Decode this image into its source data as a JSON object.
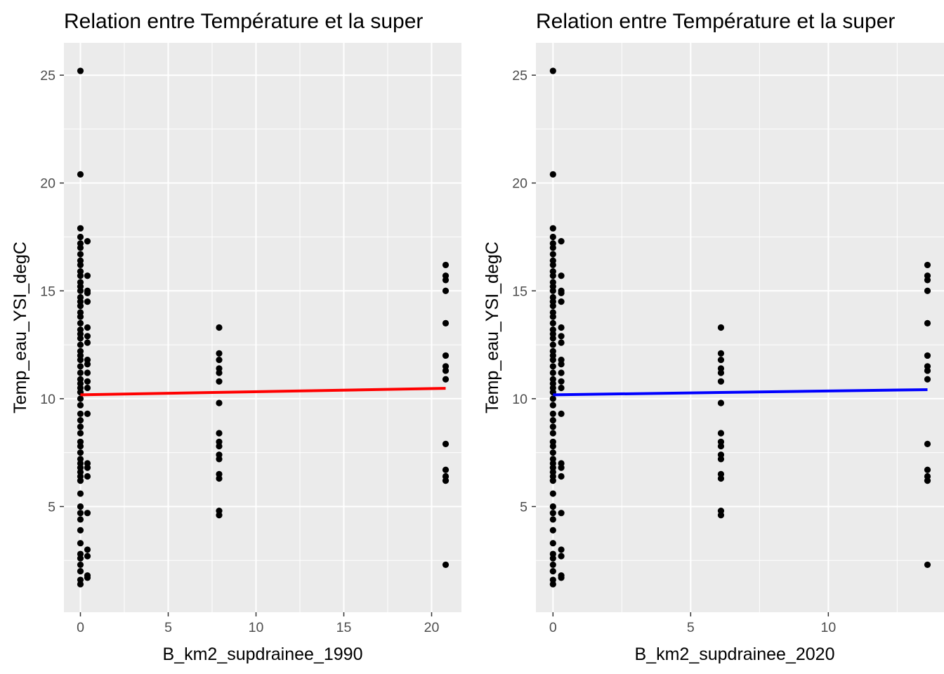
{
  "chart_data": [
    {
      "type": "scatter",
      "title": "Relation entre Température et la super",
      "xlabel": "B_km2_supdrainee_1990",
      "ylabel": "Temp_eau_YSI_degC",
      "xlim": [
        -0.94,
        21.7
      ],
      "ylim": [
        0.1,
        26.5
      ],
      "xticks": [
        0,
        5,
        10,
        15,
        20
      ],
      "yticks": [
        5,
        10,
        15,
        20,
        25
      ],
      "grid": true,
      "background_color": "#ebebeb",
      "point_color": "#000000",
      "trend_line": {
        "color": "#ff0000",
        "x": [
          0,
          20.8
        ],
        "y": [
          10.18,
          10.48
        ]
      },
      "series": [
        {
          "x": 0,
          "values": [
            1.4,
            1.6,
            2.0,
            2.3,
            2.6,
            2.8,
            3.3,
            3.9,
            4.4,
            4.7,
            5.0,
            5.6,
            6.2,
            6.4,
            6.6,
            6.8,
            7.0,
            7.2,
            7.5,
            7.8,
            8.0,
            8.4,
            8.7,
            9.0,
            9.3,
            9.7,
            10.0,
            10.3,
            10.5,
            10.7,
            10.9,
            11.2,
            11.5,
            11.8,
            12.0,
            12.2,
            12.5,
            12.8,
            13.0,
            13.2,
            13.5,
            13.8,
            14.0,
            14.3,
            14.5,
            14.7,
            15.0,
            15.2,
            15.4,
            15.7,
            15.9,
            16.2,
            16.4,
            16.7,
            17.0,
            17.2,
            17.5,
            17.9,
            20.4,
            25.2
          ]
        },
        {
          "x": 0.4,
          "values": [
            1.7,
            1.8,
            2.7,
            3.0,
            4.7,
            6.4,
            6.8,
            7.0,
            9.3,
            10.5,
            10.8,
            11.2,
            11.6,
            11.8,
            12.6,
            12.9,
            13.3,
            14.5,
            14.9,
            15.0,
            15.7,
            17.3
          ]
        },
        {
          "x": 7.9,
          "values": [
            4.6,
            4.8,
            6.3,
            6.5,
            7.2,
            7.4,
            7.8,
            8.0,
            8.4,
            9.8,
            10.8,
            11.2,
            11.4,
            11.8,
            12.1,
            13.3
          ]
        },
        {
          "x": 20.8,
          "values": [
            2.3,
            6.2,
            6.4,
            6.7,
            7.9,
            10.9,
            11.3,
            11.5,
            12.0,
            13.5,
            15.0,
            15.5,
            15.7,
            16.2
          ]
        }
      ]
    },
    {
      "type": "scatter",
      "title": "Relation entre Température et la super",
      "xlabel": "B_km2_supdrainee_2020",
      "ylabel": "Temp_eau_YSI_degC",
      "xlim": [
        -0.62,
        14.2
      ],
      "ylim": [
        0.1,
        26.5
      ],
      "xticks": [
        0,
        5,
        10
      ],
      "yticks": [
        5,
        10,
        15,
        20,
        25
      ],
      "grid": true,
      "background_color": "#ebebeb",
      "point_color": "#000000",
      "trend_line": {
        "color": "#0000ff",
        "x": [
          0,
          13.6
        ],
        "y": [
          10.18,
          10.42
        ]
      },
      "series": [
        {
          "x": 0,
          "values": [
            1.4,
            1.6,
            2.0,
            2.3,
            2.6,
            2.8,
            3.3,
            3.9,
            4.4,
            4.7,
            5.0,
            5.6,
            6.2,
            6.4,
            6.6,
            6.8,
            7.0,
            7.2,
            7.5,
            7.8,
            8.0,
            8.4,
            8.7,
            9.0,
            9.3,
            9.7,
            10.0,
            10.3,
            10.5,
            10.7,
            10.9,
            11.2,
            11.5,
            11.8,
            12.0,
            12.2,
            12.5,
            12.8,
            13.0,
            13.2,
            13.5,
            13.8,
            14.0,
            14.3,
            14.5,
            14.7,
            15.0,
            15.2,
            15.4,
            15.7,
            15.9,
            16.2,
            16.4,
            16.7,
            17.0,
            17.2,
            17.5,
            17.9,
            20.4,
            25.2
          ]
        },
        {
          "x": 0.3,
          "values": [
            1.7,
            1.8,
            2.7,
            3.0,
            4.7,
            6.4,
            6.8,
            7.0,
            9.3,
            10.5,
            10.8,
            11.2,
            11.6,
            11.8,
            12.6,
            12.9,
            13.3,
            14.5,
            14.9,
            15.0,
            15.7,
            17.3
          ]
        },
        {
          "x": 6.1,
          "values": [
            4.6,
            4.8,
            6.3,
            6.5,
            7.2,
            7.4,
            7.8,
            8.0,
            8.4,
            9.8,
            10.8,
            11.2,
            11.4,
            11.8,
            12.1,
            13.3
          ]
        },
        {
          "x": 13.6,
          "values": [
            2.3,
            6.2,
            6.4,
            6.7,
            7.9,
            10.9,
            11.3,
            11.5,
            12.0,
            13.5,
            15.0,
            15.5,
            15.7,
            16.2
          ]
        }
      ]
    }
  ]
}
